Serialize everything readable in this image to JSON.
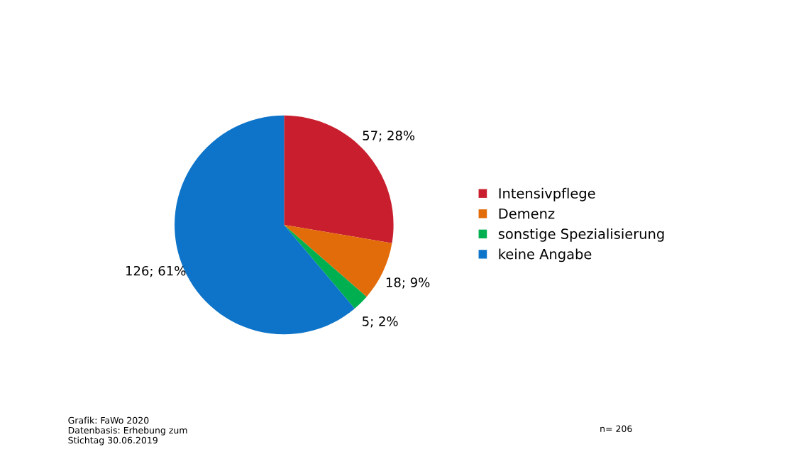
{
  "chart_data": {
    "type": "pie",
    "categories": [
      "Intensivpflege",
      "Demenz",
      "sonstige Spezialisierung",
      "keine Angabe"
    ],
    "values": [
      57,
      18,
      5,
      126
    ],
    "colors": [
      "#c81e2d",
      "#e36c0a",
      "#00b050",
      "#0e74c9"
    ],
    "value_labels": [
      "57; 28%",
      "18; 9%",
      "5; 2%",
      "126; 61%"
    ],
    "legend": "right",
    "annotations": [
      "Grafik: FaWo 2020\nDatenbasis: Erhebung zum\nStichtag 30.06.2019",
      "n= 206"
    ]
  }
}
